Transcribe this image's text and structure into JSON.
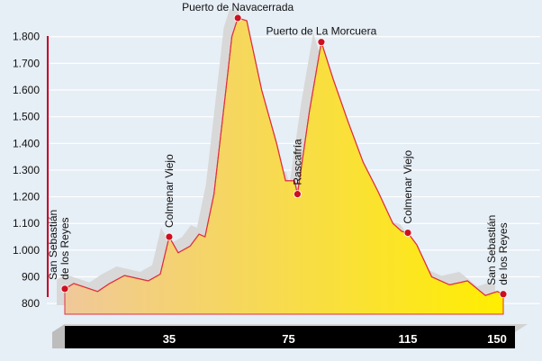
{
  "chart_data": {
    "type": "area",
    "title": "",
    "xlabel": "",
    "ylabel": "",
    "xlim": [
      0,
      150
    ],
    "ylim": [
      760,
      1870
    ],
    "y_ticks": [
      800,
      900,
      1000,
      1100,
      1200,
      1300,
      1400,
      1500,
      1600,
      1700,
      1800
    ],
    "y_tick_labels": [
      "800",
      "900",
      "1.000",
      "1.100",
      "1.200",
      "1.300",
      "1.400",
      "1.500",
      "1.600",
      "1.700",
      "1.800"
    ],
    "x_ticks": [
      35,
      75,
      115,
      150
    ],
    "x_tick_labels": [
      "35",
      "75",
      "115",
      "150"
    ],
    "grid": true,
    "series": [
      {
        "x": [
          0,
          3,
          7,
          11,
          15,
          20,
          24,
          28,
          32,
          35,
          38,
          42,
          45,
          47,
          50,
          54,
          56,
          58,
          61,
          66,
          71,
          74,
          77,
          78,
          82,
          86,
          90,
          95,
          100,
          105,
          110,
          113,
          115,
          118,
          123,
          129,
          135,
          141,
          145,
          147
        ],
        "y": [
          855,
          875,
          860,
          845,
          875,
          905,
          895,
          885,
          910,
          1050,
          990,
          1015,
          1060,
          1050,
          1210,
          1600,
          1800,
          1870,
          1860,
          1600,
          1400,
          1260,
          1260,
          1210,
          1520,
          1780,
          1640,
          1480,
          1330,
          1220,
          1100,
          1070,
          1065,
          1020,
          900,
          870,
          885,
          830,
          845,
          835
        ]
      }
    ],
    "markers": [
      {
        "x": 0,
        "y": 855,
        "label": "San Sebastián de los Reyes",
        "lines": [
          "San Sebastián",
          "de los Reyes"
        ]
      },
      {
        "x": 35,
        "y": 1050,
        "label": "Colmenar Viejo",
        "lines": [
          "Colmenar Viejo"
        ]
      },
      {
        "x": 58,
        "y": 1870,
        "label": "Puerto de Navacerrada",
        "lines": [
          "Puerto de Navacerrada"
        ]
      },
      {
        "x": 78,
        "y": 1210,
        "label": "Rascafría",
        "lines": [
          "Rascafría"
        ]
      },
      {
        "x": 86,
        "y": 1780,
        "label": "Puerto de La Morcuera",
        "lines": [
          "Puerto de La Morcuera"
        ]
      },
      {
        "x": 115,
        "y": 1065,
        "label": "Colmenar Viejo",
        "lines": [
          "Colmenar Viejo"
        ]
      },
      {
        "x": 147,
        "y": 835,
        "label": "San Sebastián de los Reyes",
        "lines": [
          "San Sebastián",
          "de los Reyes"
        ]
      }
    ],
    "colors": {
      "fill_start": "#f0c89a",
      "fill_end": "#ffee00",
      "line": "#e0303c",
      "marker": "#cc1020",
      "axis_bar": "#c40020",
      "shadow": "#d8d8d8",
      "distance_bar": "#000000",
      "background": "#e6eef6"
    }
  }
}
